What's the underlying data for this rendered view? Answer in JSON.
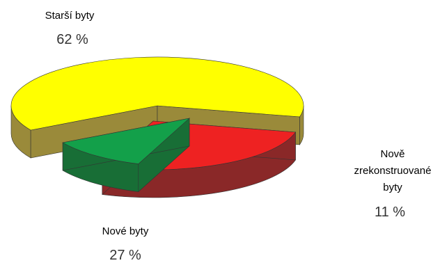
{
  "chart_data": {
    "type": "pie",
    "title": "",
    "style": "3d-exploded",
    "slices": [
      {
        "name": "Starší byty",
        "value": 62,
        "value_label": "62 %",
        "color": "#ffff00",
        "side_color": "#9a8a3a"
      },
      {
        "name": "Nové byty",
        "value": 27,
        "value_label": "27 %",
        "color": "#ee2222",
        "side_color": "#8a2828"
      },
      {
        "name_lines": [
          "Nově",
          "zrekonstruované",
          "byty"
        ],
        "value": 11,
        "value_label": "11 %",
        "color": "#13a04a",
        "side_color": "#186e36"
      }
    ]
  }
}
